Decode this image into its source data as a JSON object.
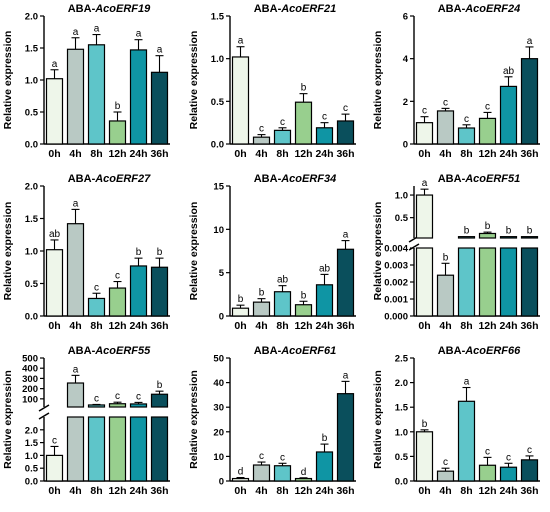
{
  "colors": [
    "#eef6ea",
    "#b9c9c4",
    "#5ec5c9",
    "#98cf8e",
    "#0f95a4",
    "#0a4f5c"
  ],
  "chart_data": [
    {
      "type": "bar",
      "title_prefix": "ABA-",
      "title_gene": "AcoERF19",
      "ylabel": "Relative expression",
      "categories": [
        "0h",
        "4h",
        "8h",
        "12h",
        "24h",
        "36h"
      ],
      "values": [
        1.02,
        1.48,
        1.55,
        0.36,
        1.47,
        1.12
      ],
      "errors": [
        0.14,
        0.18,
        0.16,
        0.14,
        0.16,
        0.26
      ],
      "letters": [
        "a",
        "a",
        "a",
        "b",
        "a",
        "a"
      ],
      "ylim": [
        0,
        2.0
      ],
      "yticks": [
        0,
        0.5,
        1.0,
        1.5,
        2.0
      ],
      "ytick_labels": [
        "0.0",
        "0.5",
        "1.0",
        "1.5",
        "2.0"
      ]
    },
    {
      "type": "bar",
      "title_prefix": "ABA-",
      "title_gene": "AcoERF21",
      "ylabel": "Relative expression",
      "categories": [
        "0h",
        "4h",
        "8h",
        "12h",
        "24h",
        "36h"
      ],
      "values": [
        1.02,
        0.08,
        0.16,
        0.49,
        0.19,
        0.27
      ],
      "errors": [
        0.12,
        0.03,
        0.03,
        0.1,
        0.06,
        0.08
      ],
      "letters": [
        "a",
        "c",
        "c",
        "b",
        "c",
        "c"
      ],
      "ylim": [
        0,
        1.5
      ],
      "yticks": [
        0,
        0.5,
        1.0,
        1.5
      ],
      "ytick_labels": [
        "0.0",
        "0.5",
        "1.0",
        "1.5"
      ]
    },
    {
      "type": "bar",
      "title_prefix": "ABA-",
      "title_gene": "AcoERF24",
      "ylabel": "Relative expression",
      "categories": [
        "0h",
        "4h",
        "8h",
        "12h",
        "24h",
        "36h"
      ],
      "values": [
        1.0,
        1.55,
        0.75,
        1.2,
        2.7,
        4.0
      ],
      "errors": [
        0.28,
        0.12,
        0.15,
        0.28,
        0.45,
        0.55
      ],
      "letters": [
        "c",
        "c",
        "c",
        "c",
        "ab",
        "a"
      ],
      "ylim": [
        0,
        6
      ],
      "yticks": [
        0,
        2,
        4,
        6
      ],
      "ytick_labels": [
        "0",
        "2",
        "4",
        "6"
      ]
    },
    {
      "type": "bar",
      "title_prefix": "ABA-",
      "title_gene": "AcoERF27",
      "ylabel": "Relative expression",
      "categories": [
        "0h",
        "4h",
        "8h",
        "12h",
        "24h",
        "36h"
      ],
      "values": [
        1.02,
        1.42,
        0.27,
        0.43,
        0.77,
        0.75
      ],
      "errors": [
        0.15,
        0.22,
        0.08,
        0.1,
        0.12,
        0.14
      ],
      "letters": [
        "ab",
        "a",
        "c",
        "c",
        "b",
        "b"
      ],
      "ylim": [
        0,
        2.0
      ],
      "yticks": [
        0,
        0.5,
        1.0,
        1.5,
        2.0
      ],
      "ytick_labels": [
        "0.0",
        "0.5",
        "1.0",
        "1.5",
        "2.0"
      ]
    },
    {
      "type": "bar",
      "title_prefix": "ABA-",
      "title_gene": "AcoERF34",
      "ylabel": "Relative expression",
      "categories": [
        "0h",
        "4h",
        "8h",
        "12h",
        "24h",
        "36h"
      ],
      "values": [
        0.9,
        1.6,
        2.8,
        1.3,
        3.6,
        7.7
      ],
      "errors": [
        0.35,
        0.4,
        0.7,
        0.4,
        1.2,
        1.0
      ],
      "letters": [
        "b",
        "b",
        "ab",
        "b",
        "ab",
        "a"
      ],
      "ylim": [
        0,
        15
      ],
      "yticks": [
        0,
        5,
        10,
        15
      ],
      "ytick_labels": [
        "0",
        "5",
        "10",
        "15"
      ]
    },
    {
      "type": "bar",
      "broken_axis": true,
      "title_prefix": "ABA-",
      "title_gene": "AcoERF51",
      "ylabel": "Relative expression",
      "categories": [
        "0h",
        "4h",
        "8h",
        "12h",
        "24h",
        "36h"
      ],
      "values": [
        1.0,
        0.0024,
        0.08,
        0.15,
        0.08,
        0.08
      ],
      "errors": [
        0.13,
        0.0007,
        0.0,
        0.03,
        0.0,
        0.0
      ],
      "letters": [
        "a",
        "b",
        "b",
        "b",
        "b",
        "b"
      ],
      "lower_ylim": [
        0,
        0.004
      ],
      "lower_yticks": [
        0,
        0.001,
        0.002,
        0.003,
        0.004
      ],
      "lower_ytick_labels": [
        "0.000",
        "0.001",
        "0.002",
        "0.003",
        "0.004"
      ],
      "upper_ylim": [
        0.05,
        1.2
      ],
      "upper_yticks": [
        0.5,
        1.0
      ],
      "upper_ytick_labels": [
        "0.5",
        "1.0"
      ]
    },
    {
      "type": "bar",
      "broken_axis": true,
      "title_prefix": "ABA-",
      "title_gene": "AcoERF55",
      "ylabel": "Relative expression",
      "categories": [
        "0h",
        "4h",
        "8h",
        "12h",
        "24h",
        "36h"
      ],
      "values": [
        1.0,
        255,
        40,
        52,
        50,
        145
      ],
      "errors": [
        0.35,
        75,
        5,
        15,
        15,
        30
      ],
      "letters": [
        "c",
        "a",
        "c",
        "c",
        "c",
        "b"
      ],
      "lower_ylim": [
        0,
        2.5
      ],
      "lower_yticks": [
        0,
        0.5,
        1.0,
        1.5,
        2.0
      ],
      "lower_ytick_labels": [
        "0.0",
        "0.5",
        "1.0",
        "1.5",
        "2.0"
      ],
      "upper_ylim": [
        20,
        500
      ],
      "upper_yticks": [
        100,
        200,
        300,
        400,
        500
      ],
      "upper_ytick_labels": [
        "100",
        "200",
        "300",
        "400",
        "500"
      ]
    },
    {
      "type": "bar",
      "title_prefix": "ABA-",
      "title_gene": "AcoERF61",
      "ylabel": "Relative expression",
      "categories": [
        "0h",
        "4h",
        "8h",
        "12h",
        "24h",
        "36h"
      ],
      "values": [
        1.0,
        6.5,
        6.2,
        1.0,
        11.8,
        35.5
      ],
      "errors": [
        0.4,
        1.2,
        1.0,
        0.3,
        3.2,
        5.0
      ],
      "letters": [
        "d",
        "c",
        "c",
        "d",
        "b",
        "a"
      ],
      "ylim": [
        0,
        50
      ],
      "yticks": [
        0,
        10,
        20,
        30,
        40,
        50
      ],
      "ytick_labels": [
        "0",
        "10",
        "20",
        "30",
        "40",
        "50"
      ]
    },
    {
      "type": "bar",
      "title_prefix": "ABA-",
      "title_gene": "AcoERF66",
      "ylabel": "Relative expression",
      "categories": [
        "0h",
        "4h",
        "8h",
        "12h",
        "24h",
        "36h"
      ],
      "values": [
        1.0,
        0.2,
        1.62,
        0.32,
        0.28,
        0.43
      ],
      "errors": [
        0.04,
        0.06,
        0.28,
        0.16,
        0.08,
        0.08
      ],
      "letters": [
        "b",
        "c",
        "a",
        "c",
        "c",
        "c"
      ],
      "ylim": [
        0,
        2.5
      ],
      "yticks": [
        0,
        0.5,
        1.0,
        1.5,
        2.0,
        2.5
      ],
      "ytick_labels": [
        "0.0",
        "0.5",
        "1.0",
        "1.5",
        "2.0",
        "2.5"
      ]
    }
  ]
}
